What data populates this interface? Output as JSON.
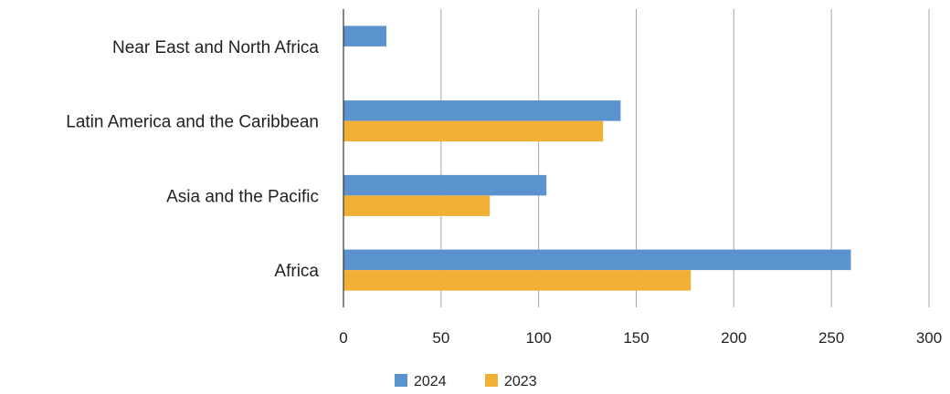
{
  "chart_data": {
    "type": "bar",
    "orientation": "horizontal",
    "categories": [
      "Near East and North Africa",
      "Latin America and the Caribbean",
      "Asia and the Pacific",
      "Africa"
    ],
    "series": [
      {
        "name": "2024",
        "color": "#5B93CE",
        "values": [
          22,
          142,
          104,
          260
        ]
      },
      {
        "name": "2023",
        "color": "#F3B036",
        "values": [
          0,
          133,
          75,
          178
        ]
      }
    ],
    "x_ticks": [
      "0",
      "50",
      "100",
      "150",
      "200",
      "250",
      "300"
    ],
    "xlim": [
      0,
      300
    ],
    "grid": "vertical",
    "legend_position": "bottom"
  }
}
